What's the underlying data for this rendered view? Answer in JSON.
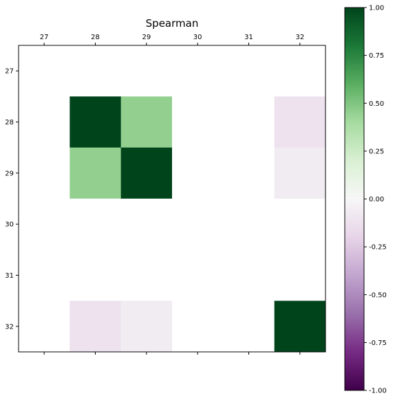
{
  "chart_data": {
    "type": "heatmap",
    "title": "Spearman",
    "x_categories": [
      "27",
      "28",
      "29",
      "30",
      "31",
      "32"
    ],
    "y_categories": [
      "27",
      "28",
      "29",
      "30",
      "31",
      "32"
    ],
    "values": [
      [
        0,
        0,
        0,
        0,
        0,
        0
      ],
      [
        0,
        1.0,
        0.45,
        0,
        0,
        -0.12
      ],
      [
        0,
        0.45,
        1.0,
        0,
        0,
        -0.07
      ],
      [
        0,
        0,
        0,
        0,
        0,
        0
      ],
      [
        0,
        0,
        0,
        0,
        0,
        0
      ],
      [
        0,
        -0.12,
        -0.07,
        0,
        0,
        1.0
      ]
    ],
    "colormap": "PRGn",
    "vmin": -1.0,
    "vmax": 1.0,
    "colorbar_ticks": [
      "-1.00",
      "-0.75",
      "-0.50",
      "-0.25",
      "0.00",
      "0.25",
      "0.50",
      "0.75",
      "1.00"
    ],
    "colorbar_tick_values": [
      -1.0,
      -0.75,
      -0.5,
      -0.25,
      0.0,
      0.25,
      0.5,
      0.75,
      1.0
    ],
    "x_ticks_position": "top-and-bottom",
    "legend": "colorbar-right"
  }
}
